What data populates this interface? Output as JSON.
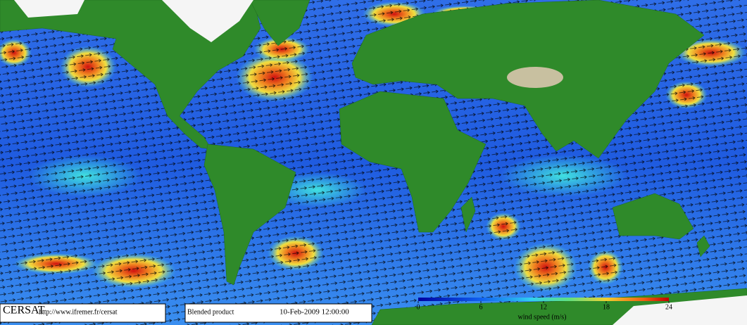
{
  "branding": {
    "name": "CERSAT",
    "url": "http://www.ifremer.fr/cersat"
  },
  "product": {
    "label": "Blended product",
    "datetime": "10-Feb-2009 12:00:00"
  },
  "colorbar": {
    "title": "wind speed (m/s)",
    "lim": [
      0,
      24
    ],
    "ticks": [
      0,
      6,
      12,
      18,
      24
    ]
  }
}
